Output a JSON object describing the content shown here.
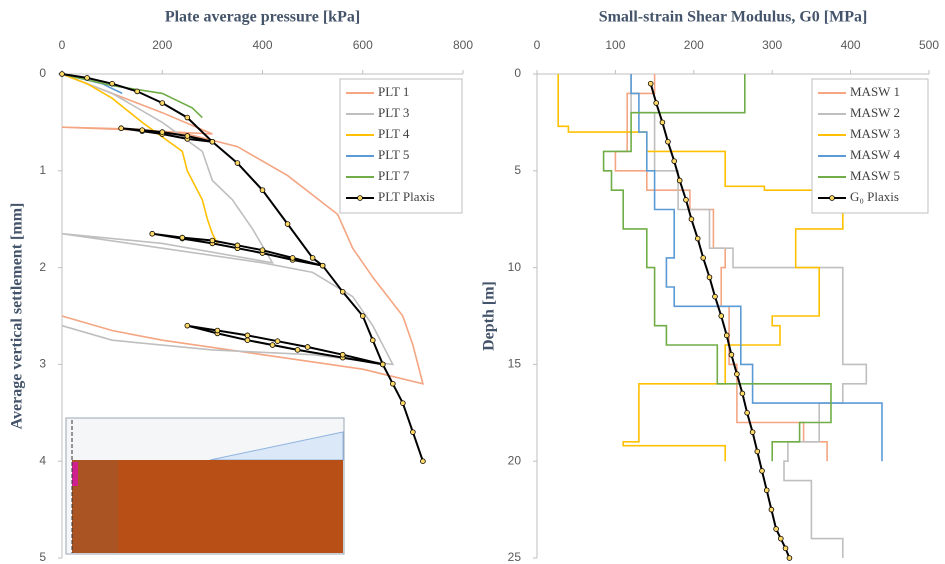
{
  "chart_data": [
    {
      "type": "line",
      "title": "Plate average pressure [kPa]",
      "y_label": "Average vertical settlement [mm]",
      "xlim": [
        0,
        800
      ],
      "xticks": [
        0,
        200,
        400,
        600,
        800
      ],
      "ylim": [
        0,
        5
      ],
      "yticks": [
        0,
        1,
        2,
        3,
        4,
        5
      ],
      "y_inverted": true,
      "legend": "upper right",
      "series": [
        {
          "name": "PLT 1",
          "color": "#f4a582",
          "markers": false,
          "x": [
            0,
            100,
            200,
            300,
            150,
            0,
            150,
            250,
            350,
            450,
            550,
            580,
            620,
            650,
            680,
            700,
            720,
            600,
            400,
            200,
            100,
            0
          ],
          "y": [
            0,
            0.2,
            0.4,
            0.62,
            0.58,
            0.55,
            0.57,
            0.62,
            0.75,
            1.05,
            1.45,
            1.8,
            2.1,
            2.3,
            2.5,
            2.8,
            3.2,
            3.05,
            2.9,
            2.75,
            2.65,
            2.5
          ]
        },
        {
          "name": "PLT 3",
          "color": "#bfbfbf",
          "markers": false,
          "x": [
            0,
            100,
            200,
            280,
            300,
            340,
            380,
            420,
            200,
            0,
            200,
            400,
            500,
            580,
            620,
            660,
            500,
            300,
            100,
            0
          ],
          "y": [
            0,
            0.2,
            0.5,
            0.8,
            1.1,
            1.3,
            1.6,
            1.95,
            1.75,
            1.65,
            1.8,
            1.95,
            2.05,
            2.3,
            2.6,
            3.0,
            2.9,
            2.85,
            2.75,
            2.6
          ]
        },
        {
          "name": "PLT 4",
          "color": "#ffc000",
          "markers": false,
          "x": [
            0,
            50,
            100,
            160,
            200,
            240,
            250,
            260,
            280,
            290,
            300,
            310
          ],
          "y": [
            0,
            0.1,
            0.25,
            0.5,
            0.65,
            0.8,
            1.0,
            1.1,
            1.3,
            1.5,
            1.65,
            1.75
          ]
        },
        {
          "name": "PLT 5",
          "color": "#5b9bd5",
          "markers": false,
          "x": [
            0,
            40,
            80,
            120
          ],
          "y": [
            0,
            0.05,
            0.1,
            0.2
          ]
        },
        {
          "name": "PLT 7",
          "color": "#70ad47",
          "markers": false,
          "x": [
            0,
            100,
            200,
            260,
            280
          ],
          "y": [
            0,
            0.12,
            0.2,
            0.35,
            0.45
          ]
        },
        {
          "name": "PLT Plaxis",
          "color": "#000000",
          "markers": true,
          "x": [
            0,
            50,
            100,
            150,
            200,
            250,
            300,
            250,
            200,
            160,
            118,
            160,
            200,
            250,
            300,
            350,
            400,
            450,
            500,
            520,
            460,
            400,
            350,
            300,
            240,
            180,
            240,
            300,
            350,
            400,
            460,
            520,
            560,
            600,
            620,
            640,
            560,
            470,
            420,
            370,
            310,
            250,
            310,
            370,
            430,
            490,
            560,
            640,
            660,
            680,
            700,
            720
          ],
          "y": [
            0,
            0.04,
            0.1,
            0.18,
            0.3,
            0.45,
            0.7,
            0.67,
            0.62,
            0.59,
            0.56,
            0.58,
            0.6,
            0.64,
            0.7,
            0.92,
            1.2,
            1.55,
            1.9,
            1.98,
            1.92,
            1.85,
            1.8,
            1.75,
            1.7,
            1.65,
            1.69,
            1.72,
            1.77,
            1.82,
            1.9,
            1.98,
            2.25,
            2.5,
            2.75,
            3.0,
            2.93,
            2.85,
            2.8,
            2.75,
            2.68,
            2.6,
            2.65,
            2.7,
            2.76,
            2.82,
            2.9,
            3.0,
            3.2,
            3.4,
            3.7,
            4.0
          ]
        }
      ]
    },
    {
      "type": "line",
      "title": "Small-strain Shear Modulus, G0 [MPa]",
      "y_label": "Depth [m]",
      "xlim": [
        0,
        500
      ],
      "xticks": [
        0,
        100,
        200,
        300,
        400,
        500
      ],
      "ylim": [
        0,
        25
      ],
      "yticks": [
        0,
        5,
        10,
        15,
        20,
        25
      ],
      "y_inverted": true,
      "legend": "upper right",
      "series": [
        {
          "name": "MASW 1",
          "color": "#f4a582",
          "markers": false,
          "x": [
            150,
            150,
            115,
            115,
            100,
            100,
            140,
            140,
            195,
            195,
            225,
            225,
            240,
            240,
            235,
            235,
            245,
            245,
            255,
            255,
            340,
            340,
            370,
            370
          ],
          "y": [
            0,
            1,
            1,
            4,
            4,
            5,
            5,
            6,
            6,
            7,
            7,
            9,
            9,
            10,
            10,
            12,
            12,
            15,
            15,
            18,
            18,
            19,
            19,
            20
          ]
        },
        {
          "name": "MASW 2",
          "color": "#bfbfbf",
          "markers": false,
          "x": [
            120,
            120,
            150,
            150,
            180,
            180,
            220,
            220,
            250,
            250,
            390,
            390,
            420,
            420,
            390,
            390,
            360,
            360,
            320,
            320,
            315,
            315,
            350,
            350,
            390,
            390
          ],
          "y": [
            0,
            2,
            2,
            5,
            5,
            7,
            7,
            9,
            9,
            10,
            10,
            15,
            15,
            16,
            16,
            17,
            17,
            19,
            19,
            20,
            20,
            21,
            21,
            24,
            24,
            25
          ]
        },
        {
          "name": "MASW 3",
          "color": "#ffc000",
          "markers": false,
          "x": [
            27,
            27,
            40,
            40,
            140,
            140,
            240,
            240,
            290,
            290,
            390,
            390,
            330,
            330,
            360,
            360,
            300,
            300,
            310,
            310,
            240,
            240,
            130,
            130,
            110,
            110,
            240,
            240
          ],
          "y": [
            0,
            2.7,
            2.7,
            3.0,
            3.0,
            4.0,
            4.0,
            5.8,
            5.8,
            6.0,
            6.0,
            8.0,
            8.0,
            10.0,
            10.0,
            12.5,
            12.5,
            13.0,
            13.0,
            14.0,
            14.0,
            16.0,
            16.0,
            19.0,
            19.0,
            19.2,
            19.2,
            20.0
          ]
        },
        {
          "name": "MASW 4",
          "color": "#5b9bd5",
          "markers": false,
          "x": [
            120,
            120,
            130,
            130,
            140,
            140,
            150,
            150,
            175,
            175,
            165,
            165,
            175,
            175,
            260,
            260,
            275,
            275,
            440,
            440
          ],
          "y": [
            0,
            1,
            1,
            3,
            3,
            5,
            5,
            7,
            7,
            9.5,
            9.5,
            11,
            11,
            12,
            12,
            15,
            15,
            17,
            17,
            20
          ]
        },
        {
          "name": "MASW 5",
          "color": "#70ad47",
          "markers": false,
          "x": [
            265,
            265,
            120,
            120,
            85,
            85,
            95,
            95,
            110,
            110,
            140,
            140,
            150,
            150,
            165,
            165,
            230,
            230,
            375,
            375,
            335,
            335,
            300,
            300
          ],
          "y": [
            0,
            2,
            2,
            4,
            4,
            5,
            5,
            6,
            6,
            8,
            8,
            10,
            10,
            13,
            13,
            14,
            14,
            16,
            16,
            18,
            18,
            19,
            19,
            20
          ]
        },
        {
          "name": "G₀ Plaxis",
          "color": "#000000",
          "markers": true,
          "x": [
            145,
            152,
            160,
            167,
            175,
            182,
            190,
            197,
            205,
            212,
            220,
            227,
            235,
            242,
            248,
            255,
            262,
            268,
            275,
            281,
            287,
            293,
            299,
            305,
            311,
            317,
            322
          ],
          "y": [
            0.5,
            1.5,
            2.5,
            3.5,
            4.5,
            5.5,
            6.5,
            7.5,
            8.5,
            9.5,
            10.5,
            11.5,
            12.5,
            13.5,
            14.5,
            15.5,
            16.5,
            17.5,
            18.5,
            19.5,
            20.5,
            21.5,
            22.5,
            23.5,
            24.0,
            24.5,
            25.0
          ]
        }
      ]
    }
  ]
}
